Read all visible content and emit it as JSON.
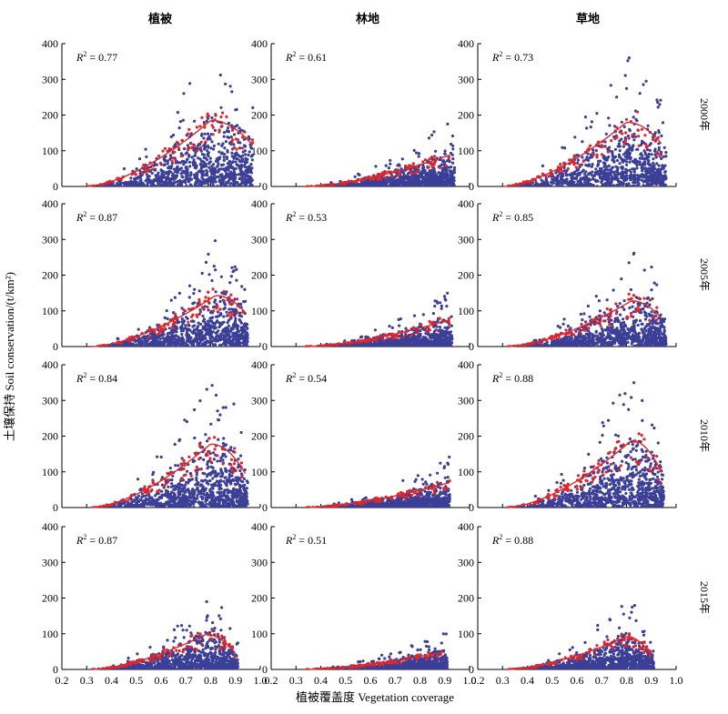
{
  "chart_data": {
    "type": "scatter",
    "column_titles": [
      "植被",
      "林地",
      "草地"
    ],
    "row_labels": [
      "2000年",
      "2005年",
      "2010年",
      "2015年"
    ],
    "xlabel": "植被覆盖度 Vegetation coverage",
    "ylabel": "土壤保持 Soil conservation/(t/km²)",
    "xlim": [
      0.2,
      1.0
    ],
    "ylim": [
      0,
      400
    ],
    "xticks": [
      "0.2",
      "0.3",
      "0.4",
      "0.5",
      "0.6",
      "0.7",
      "0.8",
      "0.9",
      "1.0"
    ],
    "yticks": [
      "0",
      "100",
      "200",
      "300",
      "400"
    ],
    "colors": {
      "points": "#3b3f96",
      "mean_points": "#e0262a",
      "fit": "#e0262a"
    },
    "panels": [
      {
        "row": 0,
        "col": 0,
        "r2": "0.77",
        "fit": {
          "x0": 0.3,
          "x1": 0.97,
          "peak_x": 0.8,
          "peak_y": 185,
          "end_y": 115
        },
        "xmax": 0.97
      },
      {
        "row": 0,
        "col": 1,
        "r2": "0.61",
        "fit": {
          "x0": 0.34,
          "x1": 0.92,
          "peak_x": 0.92,
          "peak_y": 88,
          "end_y": 88
        },
        "xmax": 0.94
      },
      {
        "row": 0,
        "col": 2,
        "r2": "0.73",
        "fit": {
          "x0": 0.3,
          "x1": 0.94,
          "peak_x": 0.8,
          "peak_y": 180,
          "end_y": 120
        },
        "xmax": 0.96
      },
      {
        "row": 1,
        "col": 0,
        "r2": "0.87",
        "fit": {
          "x0": 0.32,
          "x1": 0.94,
          "peak_x": 0.82,
          "peak_y": 143,
          "end_y": 95
        },
        "xmax": 0.95
      },
      {
        "row": 1,
        "col": 1,
        "r2": "0.53",
        "fit": {
          "x0": 0.34,
          "x1": 0.92,
          "peak_x": 0.92,
          "peak_y": 75,
          "end_y": 75
        },
        "xmax": 0.93
      },
      {
        "row": 1,
        "col": 2,
        "r2": "0.85",
        "fit": {
          "x0": 0.32,
          "x1": 0.94,
          "peak_x": 0.82,
          "peak_y": 128,
          "end_y": 80
        },
        "xmax": 0.96
      },
      {
        "row": 2,
        "col": 0,
        "r2": "0.84",
        "fit": {
          "x0": 0.32,
          "x1": 0.94,
          "peak_x": 0.8,
          "peak_y": 178,
          "end_y": 95
        },
        "xmax": 0.95
      },
      {
        "row": 2,
        "col": 1,
        "r2": "0.54",
        "fit": {
          "x0": 0.34,
          "x1": 0.92,
          "peak_x": 0.92,
          "peak_y": 70,
          "end_y": 70
        },
        "xmax": 0.92
      },
      {
        "row": 2,
        "col": 2,
        "r2": "0.88",
        "fit": {
          "x0": 0.32,
          "x1": 0.94,
          "peak_x": 0.82,
          "peak_y": 188,
          "end_y": 100
        },
        "xmax": 0.95
      },
      {
        "row": 3,
        "col": 0,
        "r2": "0.87",
        "fit": {
          "x0": 0.32,
          "x1": 0.9,
          "peak_x": 0.78,
          "peak_y": 98,
          "end_y": 45
        },
        "xmax": 0.91
      },
      {
        "row": 3,
        "col": 1,
        "r2": "0.51",
        "fit": {
          "x0": 0.34,
          "x1": 0.9,
          "peak_x": 0.9,
          "peak_y": 50,
          "end_y": 50
        },
        "xmax": 0.91
      },
      {
        "row": 3,
        "col": 2,
        "r2": "0.88",
        "fit": {
          "x0": 0.32,
          "x1": 0.9,
          "peak_x": 0.8,
          "peak_y": 92,
          "end_y": 40
        },
        "xmax": 0.91
      }
    ]
  }
}
